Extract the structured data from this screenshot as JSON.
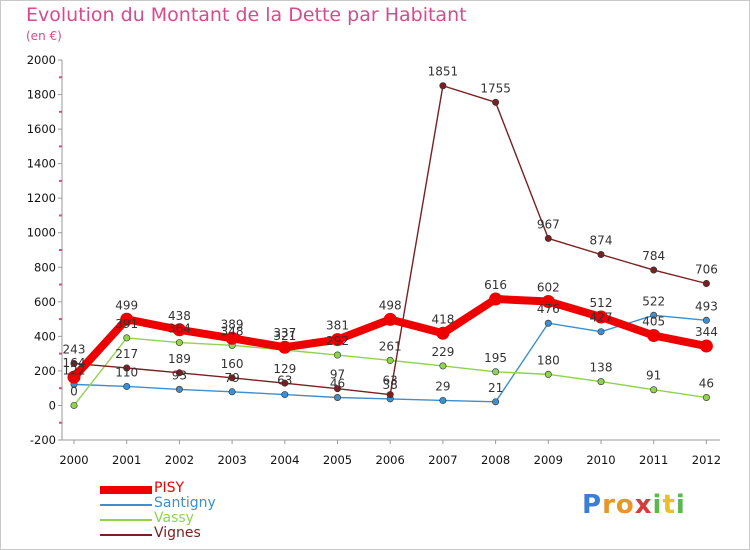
{
  "chart_data": {
    "type": "line",
    "title": "Evolution du Montant de la Dette par Habitant",
    "subtitle": "(en €)",
    "x": [
      "2000",
      "2001",
      "2002",
      "2003",
      "2004",
      "2005",
      "2006",
      "2007",
      "2008",
      "2009",
      "2010",
      "2011",
      "2012"
    ],
    "ylim": [
      -200,
      2000
    ],
    "yticks": [
      -200,
      0,
      200,
      400,
      600,
      800,
      1000,
      1200,
      1400,
      1600,
      1800,
      2000
    ],
    "grid": false,
    "legend_position": "bottom-left",
    "series": [
      {
        "name": "PISY",
        "color": "#ee0000",
        "values": [
          164,
          499,
          438,
          389,
          337,
          381,
          498,
          418,
          616,
          602,
          512,
          405,
          344
        ]
      },
      {
        "name": "Santigny",
        "color": "#3d8fcf",
        "values": [
          122,
          110,
          93,
          79,
          63,
          46,
          38,
          29,
          21,
          476,
          427,
          522,
          493
        ]
      },
      {
        "name": "Vassy",
        "color": "#8fd44c",
        "values": [
          0,
          391,
          364,
          348,
          321,
          292,
          261,
          229,
          195,
          180,
          138,
          91,
          46
        ]
      },
      {
        "name": "Vignes",
        "color": "#7a2020",
        "values": [
          243,
          217,
          189,
          160,
          129,
          97,
          63,
          1851,
          1755,
          967,
          874,
          784,
          706
        ]
      }
    ]
  },
  "logo": {
    "letters": [
      "P",
      "r",
      "o",
      "x",
      "i",
      "t",
      "i"
    ],
    "colors": [
      "#3a7fd6",
      "#e8952a",
      "#e8952a",
      "#d93a3a",
      "#5bb84a",
      "#e8c02a",
      "#5bb84a"
    ]
  }
}
